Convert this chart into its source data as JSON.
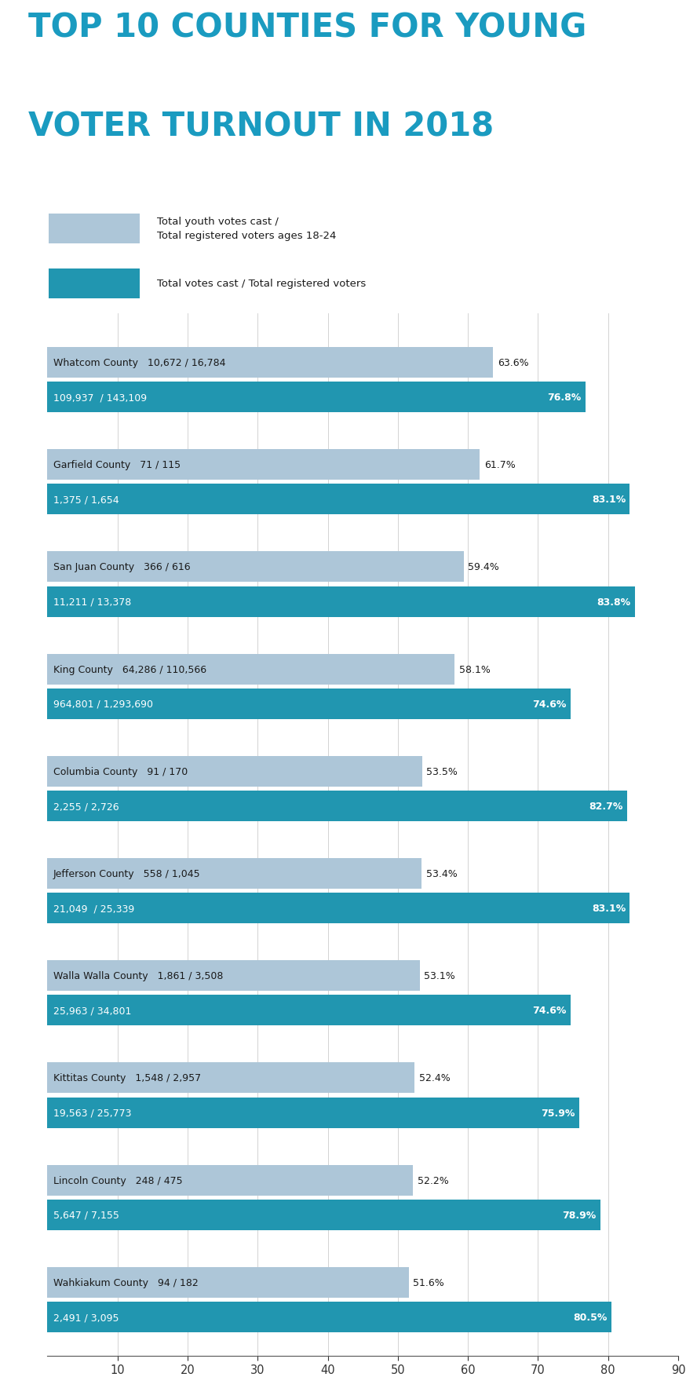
{
  "title_line1": "TOP 10 COUNTIES FOR YOUNG",
  "title_line2": "VOTER TURNOUT IN 2018",
  "title_color": "#1a9bc0",
  "legend_label1": "Total youth votes cast /\nTotal registered voters ages 18-24",
  "legend_label2": "Total votes cast / Total registered voters",
  "light_bar_color": "#adc6d8",
  "dark_bar_color": "#2196b0",
  "counties": [
    "Whatcom County",
    "Garfield County",
    "San Juan County",
    "King County",
    "Columbia County",
    "Jefferson County",
    "Walla Walla County",
    "Kittitas County",
    "Lincoln County",
    "Wahkiakum County"
  ],
  "youth_values": [
    63.6,
    61.7,
    59.4,
    58.1,
    53.5,
    53.4,
    53.1,
    52.4,
    52.2,
    51.6
  ],
  "total_values": [
    76.8,
    83.1,
    83.8,
    74.6,
    82.7,
    83.1,
    74.6,
    75.9,
    78.9,
    80.5
  ],
  "youth_labels": [
    "10,672 / 16,784",
    "71 / 115",
    "366 / 616",
    "64,286 / 110,566",
    "91 / 170",
    "558 / 1,045",
    "1,861 / 3,508",
    "1,548 / 2,957",
    "248 / 475",
    "94 / 182"
  ],
  "total_labels": [
    "109,937  / 143,109",
    "1,375 / 1,654",
    "11,211 / 13,378",
    "964,801 / 1,293,690",
    "2,255 / 2,726",
    "21,049  / 25,339",
    "25,963 / 34,801",
    "19,563 / 25,773",
    "5,647 / 7,155",
    "2,491 / 3,095"
  ],
  "youth_pct_labels": [
    "63.6%",
    "61.7%",
    "59.4%",
    "58.1%",
    "53.5%",
    "53.4%",
    "53.1%",
    "52.4%",
    "52.2%",
    "51.6%"
  ],
  "total_pct_labels": [
    "76.8%",
    "83.1%",
    "83.8%",
    "74.6%",
    "82.7%",
    "83.1%",
    "74.6%",
    "75.9%",
    "78.9%",
    "80.5%"
  ],
  "xmin": 0,
  "xmax": 90,
  "xticks": [
    10,
    20,
    30,
    40,
    50,
    60,
    70,
    80,
    90
  ],
  "bg_color": "#ffffff"
}
